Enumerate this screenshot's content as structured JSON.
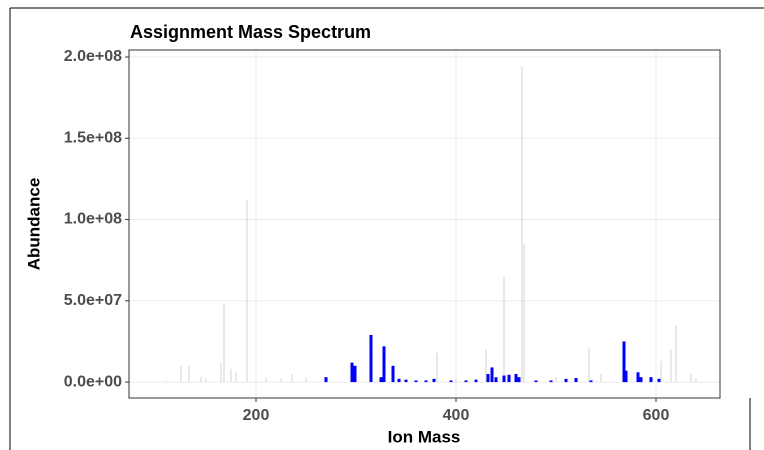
{
  "chart_data": {
    "type": "spectrum",
    "title": "Assignment Mass Spectrum",
    "x_label": "Ion Mass",
    "y_label": "Abundance",
    "xlim": [
      73,
      664
    ],
    "ylim": [
      -9800000,
      204300000
    ],
    "xticks": [
      200,
      400,
      600
    ],
    "yticks": [
      {
        "value": 0,
        "label": "0.0e+00"
      },
      {
        "value": 50000000,
        "label": "5.0e+07"
      },
      {
        "value": 100000000,
        "label": "1.0e+08"
      },
      {
        "value": 150000000,
        "label": "1.5e+08"
      },
      {
        "value": 200000000,
        "label": "2.0e+08"
      }
    ],
    "grid": true,
    "series": [
      {
        "color": "#d3d3d3",
        "x": [
          110,
          125,
          133,
          145,
          150,
          165,
          168,
          175,
          180,
          191,
          210,
          225,
          236,
          250,
          360,
          381,
          400,
          430,
          448,
          466,
          468,
          500,
          533,
          545,
          605,
          615,
          620,
          635,
          640
        ],
        "values": [
          1000000,
          10000000,
          10000000,
          3000000,
          2000000,
          12000000,
          48000000,
          8000000,
          6000000,
          112000000,
          3000000,
          2000000,
          5000000,
          3000000,
          1000000,
          18000000,
          2000000,
          20000000,
          65000000,
          194000000,
          85000000,
          3000000,
          21000000,
          5000000,
          13000000,
          20000000,
          35000000,
          5000000,
          2000000
        ]
      },
      {
        "color": "#0000ff",
        "x": [
          270,
          296,
          299,
          315,
          325,
          328,
          337,
          343,
          350,
          360,
          370,
          378,
          395,
          410,
          420,
          432,
          436,
          440,
          448,
          453,
          460,
          463,
          480,
          495,
          510,
          520,
          535,
          568,
          570,
          582,
          585,
          595,
          603
        ],
        "values": [
          3000000,
          12000000,
          10000000,
          29000000,
          3000000,
          22000000,
          10000000,
          2000000,
          1500000,
          1000000,
          1000000,
          2000000,
          1000000,
          1000000,
          1500000,
          5000000,
          9000000,
          3000000,
          4000000,
          4500000,
          5000000,
          3000000,
          1000000,
          1000000,
          2000000,
          2500000,
          1000000,
          25000000,
          7000000,
          6000000,
          3000000,
          3000000,
          2000000
        ]
      }
    ]
  }
}
